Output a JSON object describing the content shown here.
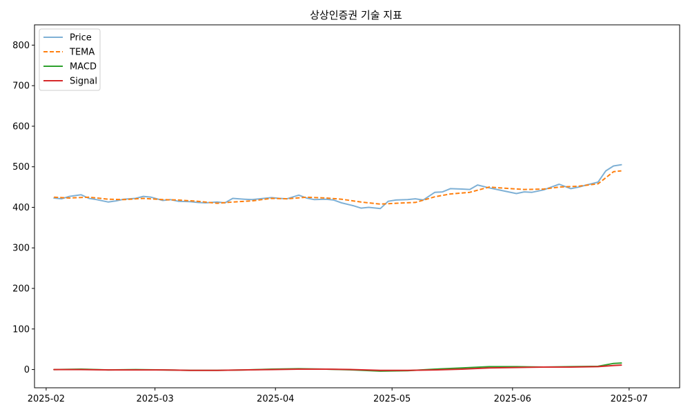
{
  "chart_data": {
    "type": "line",
    "title": "상상인증권 기술 지표",
    "xlabel": "",
    "ylabel": "",
    "xlim": [
      "2025-01-29",
      "2025-07-14"
    ],
    "ylim": [
      -45,
      850
    ],
    "x_ticks": [
      "2025-02-01",
      "2025-03-01",
      "2025-04-01",
      "2025-05-01",
      "2025-06-01",
      "2025-07-01"
    ],
    "x_tick_labels": [
      "2025-02",
      "2025-03",
      "2025-04",
      "2025-05",
      "2025-06",
      "2025-07"
    ],
    "y_ticks": [
      0,
      100,
      200,
      300,
      400,
      500,
      600,
      700,
      800
    ],
    "y_tick_labels": [
      "0",
      "100",
      "200",
      "300",
      "400",
      "500",
      "600",
      "700",
      "800"
    ],
    "grid": false,
    "legend_position": "top-left",
    "series": [
      {
        "name": "Price",
        "color": "#7eb0d5",
        "style": "solid",
        "points": [
          [
            "2025-02-03",
            423
          ],
          [
            "2025-02-05",
            421
          ],
          [
            "2025-02-07",
            427
          ],
          [
            "2025-02-10",
            431
          ],
          [
            "2025-02-12",
            422
          ],
          [
            "2025-02-14",
            419
          ],
          [
            "2025-02-17",
            413
          ],
          [
            "2025-02-19",
            416
          ],
          [
            "2025-02-21",
            420
          ],
          [
            "2025-02-24",
            422
          ],
          [
            "2025-02-26",
            427
          ],
          [
            "2025-02-28",
            425
          ],
          [
            "2025-03-03",
            417
          ],
          [
            "2025-03-05",
            419
          ],
          [
            "2025-03-07",
            415
          ],
          [
            "2025-03-10",
            414
          ],
          [
            "2025-03-12",
            412
          ],
          [
            "2025-03-14",
            411
          ],
          [
            "2025-03-17",
            413
          ],
          [
            "2025-03-19",
            411
          ],
          [
            "2025-03-21",
            422
          ],
          [
            "2025-03-24",
            420
          ],
          [
            "2025-03-26",
            419
          ],
          [
            "2025-03-28",
            421
          ],
          [
            "2025-03-31",
            424
          ],
          [
            "2025-04-02",
            422
          ],
          [
            "2025-04-04",
            421
          ],
          [
            "2025-04-07",
            430
          ],
          [
            "2025-04-09",
            423
          ],
          [
            "2025-04-11",
            419
          ],
          [
            "2025-04-14",
            420
          ],
          [
            "2025-04-16",
            418
          ],
          [
            "2025-04-18",
            411
          ],
          [
            "2025-04-21",
            404
          ],
          [
            "2025-04-23",
            398
          ],
          [
            "2025-04-25",
            400
          ],
          [
            "2025-04-28",
            397
          ],
          [
            "2025-04-30",
            415
          ],
          [
            "2025-05-02",
            418
          ],
          [
            "2025-05-05",
            419
          ],
          [
            "2025-05-07",
            421
          ],
          [
            "2025-05-09",
            418
          ],
          [
            "2025-05-12",
            437
          ],
          [
            "2025-05-14",
            438
          ],
          [
            "2025-05-16",
            446
          ],
          [
            "2025-05-19",
            445
          ],
          [
            "2025-05-21",
            444
          ],
          [
            "2025-05-23",
            455
          ],
          [
            "2025-05-26",
            448
          ],
          [
            "2025-05-28",
            444
          ],
          [
            "2025-05-30",
            440
          ],
          [
            "2025-06-02",
            434
          ],
          [
            "2025-06-04",
            438
          ],
          [
            "2025-06-06",
            437
          ],
          [
            "2025-06-09",
            443
          ],
          [
            "2025-06-11",
            450
          ],
          [
            "2025-06-13",
            457
          ],
          [
            "2025-06-16",
            446
          ],
          [
            "2025-06-18",
            450
          ],
          [
            "2025-06-20",
            455
          ],
          [
            "2025-06-23",
            462
          ],
          [
            "2025-06-25",
            490
          ],
          [
            "2025-06-27",
            502
          ],
          [
            "2025-06-29",
            505
          ]
        ]
      },
      {
        "name": "TEMA",
        "color": "#ff7f0e",
        "style": "dashed",
        "points": [
          [
            "2025-02-03",
            425
          ],
          [
            "2025-02-07",
            423
          ],
          [
            "2025-02-12",
            425
          ],
          [
            "2025-02-17",
            420
          ],
          [
            "2025-02-21",
            419
          ],
          [
            "2025-02-26",
            422
          ],
          [
            "2025-03-03",
            419
          ],
          [
            "2025-03-07",
            418
          ],
          [
            "2025-03-12",
            415
          ],
          [
            "2025-03-17",
            410
          ],
          [
            "2025-03-21",
            413
          ],
          [
            "2025-03-26",
            416
          ],
          [
            "2025-03-31",
            422
          ],
          [
            "2025-04-04",
            421
          ],
          [
            "2025-04-09",
            425
          ],
          [
            "2025-04-14",
            423
          ],
          [
            "2025-04-18",
            420
          ],
          [
            "2025-04-23",
            413
          ],
          [
            "2025-04-28",
            408
          ],
          [
            "2025-05-02",
            410
          ],
          [
            "2025-05-07",
            412
          ],
          [
            "2025-05-12",
            426
          ],
          [
            "2025-05-16",
            433
          ],
          [
            "2025-05-21",
            437
          ],
          [
            "2025-05-26",
            450
          ],
          [
            "2025-05-30",
            447
          ],
          [
            "2025-06-04",
            444
          ],
          [
            "2025-06-09",
            445
          ],
          [
            "2025-06-13",
            450
          ],
          [
            "2025-06-18",
            452
          ],
          [
            "2025-06-23",
            458
          ],
          [
            "2025-06-27",
            488
          ],
          [
            "2025-06-29",
            490
          ]
        ]
      },
      {
        "name": "MACD",
        "color": "#2ca02c",
        "style": "solid",
        "points": [
          [
            "2025-02-03",
            0
          ],
          [
            "2025-02-10",
            1
          ],
          [
            "2025-02-17",
            -1
          ],
          [
            "2025-02-24",
            0
          ],
          [
            "2025-03-03",
            -1
          ],
          [
            "2025-03-10",
            -2
          ],
          [
            "2025-03-17",
            -2
          ],
          [
            "2025-03-24",
            -1
          ],
          [
            "2025-03-31",
            1
          ],
          [
            "2025-04-07",
            2
          ],
          [
            "2025-04-14",
            1
          ],
          [
            "2025-04-21",
            -1
          ],
          [
            "2025-04-28",
            -4
          ],
          [
            "2025-05-05",
            -3
          ],
          [
            "2025-05-12",
            1
          ],
          [
            "2025-05-19",
            4
          ],
          [
            "2025-05-26",
            7
          ],
          [
            "2025-06-02",
            7
          ],
          [
            "2025-06-09",
            6
          ],
          [
            "2025-06-16",
            7
          ],
          [
            "2025-06-23",
            8
          ],
          [
            "2025-06-27",
            15
          ],
          [
            "2025-06-29",
            16
          ]
        ]
      },
      {
        "name": "Signal",
        "color": "#d62728",
        "style": "solid",
        "points": [
          [
            "2025-02-03",
            0
          ],
          [
            "2025-02-10",
            0
          ],
          [
            "2025-02-17",
            -1
          ],
          [
            "2025-02-24",
            -1
          ],
          [
            "2025-03-03",
            -1
          ],
          [
            "2025-03-10",
            -2
          ],
          [
            "2025-03-17",
            -2
          ],
          [
            "2025-03-24",
            -1
          ],
          [
            "2025-03-31",
            0
          ],
          [
            "2025-04-07",
            1
          ],
          [
            "2025-04-14",
            1
          ],
          [
            "2025-04-21",
            0
          ],
          [
            "2025-04-28",
            -2
          ],
          [
            "2025-05-05",
            -2
          ],
          [
            "2025-05-12",
            -1
          ],
          [
            "2025-05-19",
            1
          ],
          [
            "2025-05-26",
            4
          ],
          [
            "2025-06-02",
            5
          ],
          [
            "2025-06-09",
            6
          ],
          [
            "2025-06-16",
            6
          ],
          [
            "2025-06-23",
            7
          ],
          [
            "2025-06-27",
            10
          ],
          [
            "2025-06-29",
            11
          ]
        ]
      }
    ]
  }
}
